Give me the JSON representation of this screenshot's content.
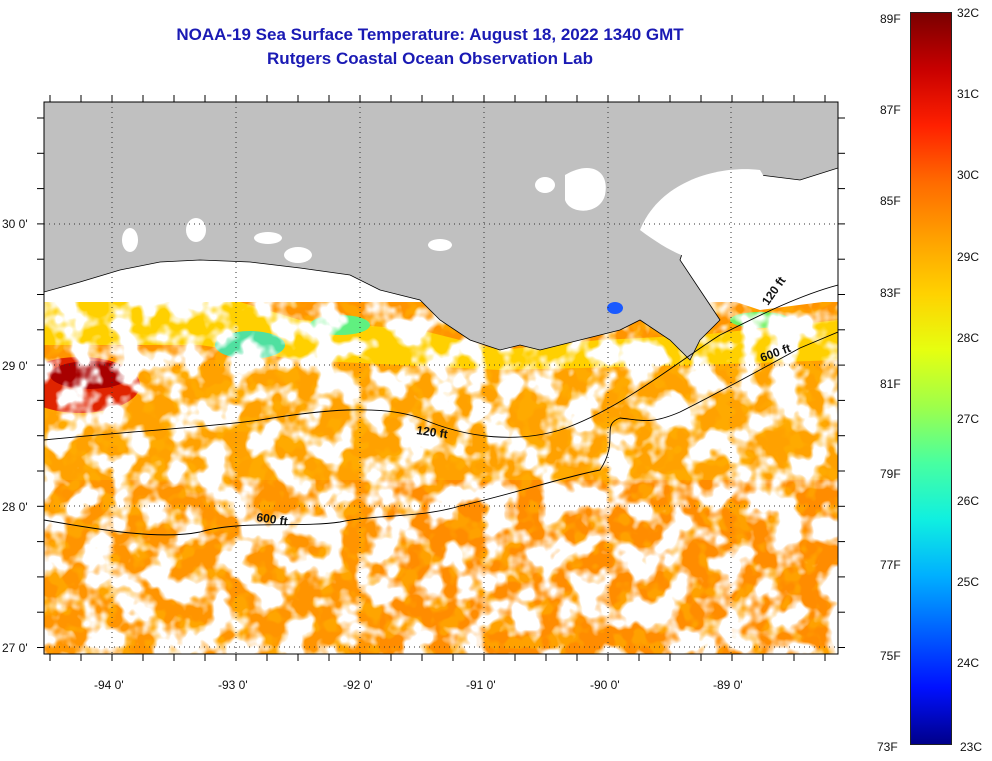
{
  "header": {
    "title": "NOAA-19 Sea Surface Temperature:  August 18, 2022 1340 GMT",
    "subtitle": "Rutgers Coastal Ocean Observation Lab"
  },
  "axes": {
    "lat_labels": [
      "30 0'",
      "29 0'",
      "28 0'",
      "27 0'"
    ],
    "lon_labels": [
      "-94 0'",
      "-93 0'",
      "-92 0'",
      "-91 0'",
      "-90 0'",
      "-89 0'"
    ]
  },
  "contours": {
    "shallow_label": "120 ft",
    "deep_label": "600 ft"
  },
  "colorbar": {
    "f_labels": [
      "89F",
      "87F",
      "85F",
      "83F",
      "81F",
      "79F",
      "77F",
      "75F",
      "73F"
    ],
    "c_labels": [
      "32C",
      "31C",
      "30C",
      "29C",
      "28C",
      "27C",
      "26C",
      "25C",
      "24C",
      "23C"
    ],
    "stops": [
      "#7a0000",
      "#c80000",
      "#ff2000",
      "#ff6a00",
      "#ffa000",
      "#ffd200",
      "#e6ff10",
      "#9eff4a",
      "#48ffa0",
      "#10f0e0",
      "#00b0ff",
      "#0060ff",
      "#0010ff",
      "#00008a"
    ]
  },
  "colors": {
    "land": "#c0c0c0",
    "cloud": "#ffffff",
    "warm": "#ff8a00",
    "hot": "#d81e00",
    "cool": "#30e0c0",
    "title": "#1a1ab4"
  }
}
